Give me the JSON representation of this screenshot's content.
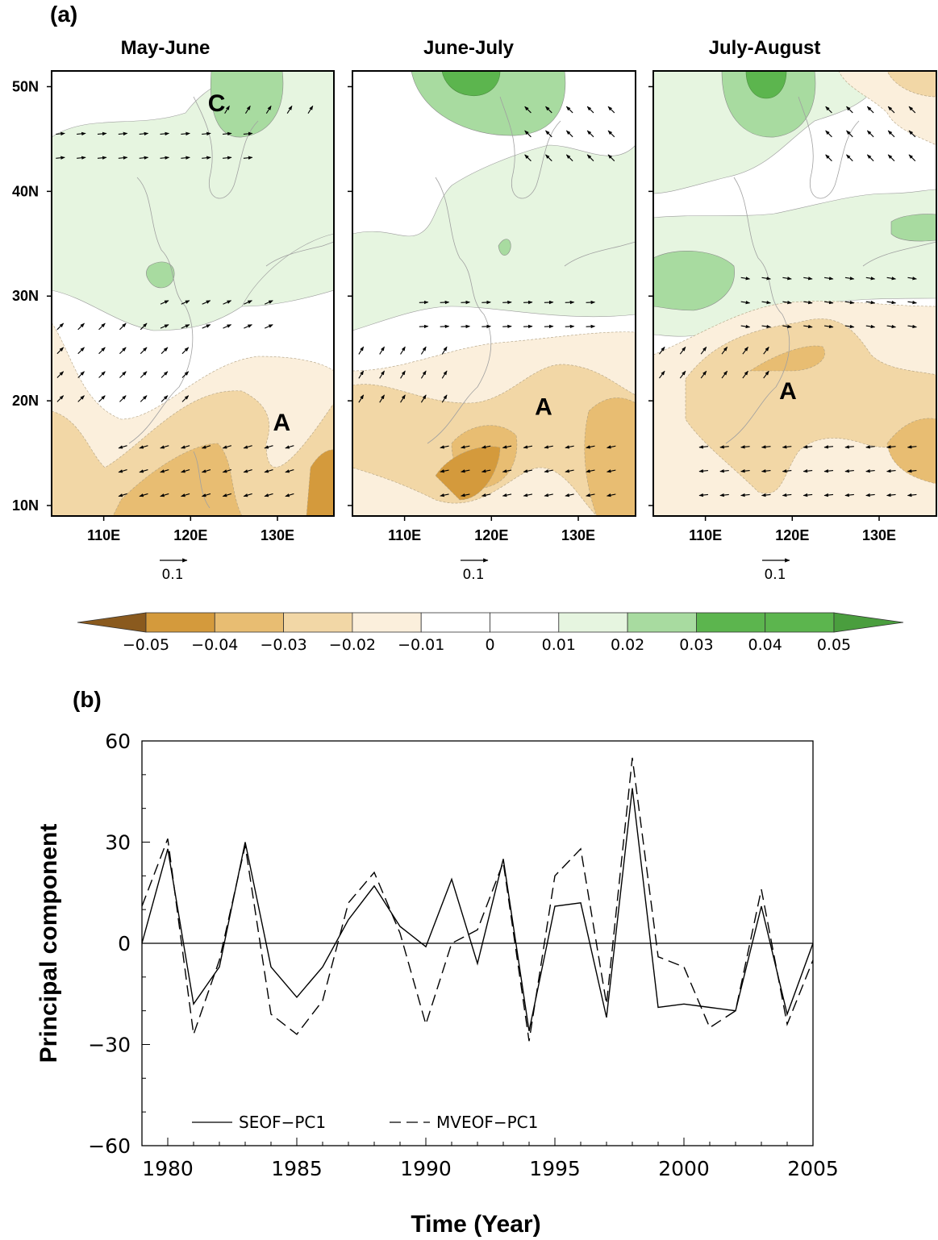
{
  "panel_a": {
    "tag": "(a)",
    "maps": [
      {
        "title": "May-June",
        "reference_vector_label": "0.1",
        "center_labels": [
          {
            "text": "C",
            "lon": 123.0,
            "lat": 48.5
          },
          {
            "text": "A",
            "lon": 130.5,
            "lat": 18.0
          }
        ]
      },
      {
        "title": "June-July",
        "reference_vector_label": "0.1",
        "center_labels": [
          {
            "text": "A",
            "lon": 126.0,
            "lat": 19.5
          }
        ]
      },
      {
        "title": "July-August",
        "reference_vector_label": "0.1",
        "center_labels": [
          {
            "text": "A",
            "lon": 119.5,
            "lat": 21.0
          }
        ]
      }
    ],
    "lat_ticks": [
      "10N",
      "20N",
      "30N",
      "40N",
      "50N"
    ],
    "lon_ticks": [
      "110E",
      "120E",
      "130E"
    ],
    "colorbar": {
      "labels": [
        "−0.05",
        "−0.04",
        "−0.03",
        "−0.02",
        "−0.01",
        "0",
        "0.01",
        "0.02",
        "0.03",
        "0.04",
        "0.05"
      ],
      "colors": [
        "#8a5a1e",
        "#d49a3c",
        "#e8bd72",
        "#f2d7a6",
        "#fbefdc",
        "#ffffff",
        "#ffffff",
        "#e6f5e0",
        "#a8dba0",
        "#5cb54e",
        "#5cb54e",
        "#4a9e3e"
      ]
    }
  },
  "chart_data": {
    "type": "line",
    "tag": "(b)",
    "xlabel": "Time (Year)",
    "ylabel": "Principal component",
    "xlim": [
      1979,
      2005
    ],
    "ylim": [
      -60,
      60
    ],
    "x_ticks": [
      "1980",
      "1985",
      "1990",
      "1995",
      "2000",
      "2005"
    ],
    "y_ticks": [
      "60",
      "30",
      "0",
      "−30",
      "−60"
    ],
    "x": [
      1979,
      1980,
      1981,
      1982,
      1983,
      1984,
      1985,
      1986,
      1987,
      1988,
      1989,
      1990,
      1991,
      1992,
      1993,
      1994,
      1995,
      1996,
      1997,
      1998,
      1999,
      2000,
      2001,
      2002,
      2003,
      2004,
      2005
    ],
    "series": [
      {
        "name": "SEOF−PC1",
        "style": "solid",
        "values": [
          0,
          28,
          -18,
          -7,
          30,
          -7,
          -16,
          -7,
          7,
          17,
          5,
          -1,
          19,
          -6,
          25,
          -26,
          11,
          12,
          -22,
          46,
          -19,
          -18,
          -19,
          -20,
          11,
          -21,
          0
        ]
      },
      {
        "name": "MVEOF−PC1",
        "style": "dashed",
        "values": [
          11,
          31,
          -27,
          -5,
          29,
          -21,
          -27,
          -17,
          12,
          21,
          3,
          -24,
          0,
          4,
          24,
          -29,
          20,
          28,
          -18,
          55,
          -4,
          -7,
          -25,
          -20,
          16,
          -24,
          -5
        ]
      }
    ],
    "legend_position": "bottom-left"
  }
}
